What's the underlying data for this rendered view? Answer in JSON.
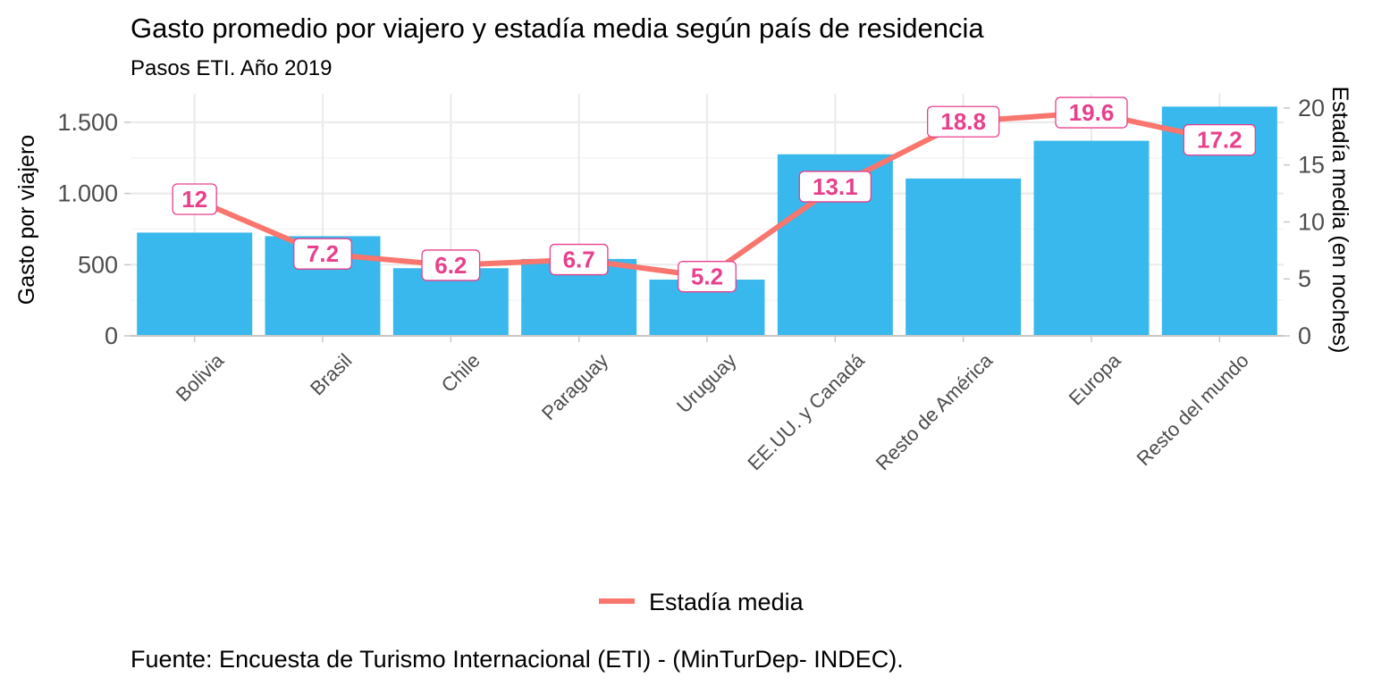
{
  "chart_data": {
    "type": "bar",
    "title": "Gasto promedio por viajero y estadía media según país de residencia",
    "subtitle": "Pasos ETI. Año 2019",
    "caption": "Fuente: Encuesta de Turismo Internacional (ETI) - (MinTurDep- INDEC).",
    "ylabel": "Gasto por viajero",
    "ylabel_right": "Estadía media (en noches)",
    "categories": [
      "Bolivia",
      "Brasil",
      "Chile",
      "Paraguay",
      "Uruguay",
      "EE.UU. y Canadá",
      "Resto de América",
      "Europa",
      "Resto del mundo"
    ],
    "series": [
      {
        "type": "bar",
        "axis": "left",
        "values": [
          725,
          700,
          475,
          540,
          395,
          1275,
          1105,
          1370,
          1610
        ]
      },
      {
        "type": "line",
        "axis": "right",
        "name": "Estadía media",
        "values": [
          12,
          7.2,
          6.2,
          6.7,
          5.2,
          13.1,
          18.8,
          19.6,
          17.2
        ],
        "labels": [
          "12",
          "7.2",
          "6.2",
          "6.7",
          "5.2",
          "13.1",
          "18.8",
          "19.6",
          "17.2"
        ]
      }
    ],
    "ylim": [
      0,
      1700
    ],
    "ylim_right": [
      0,
      21.25
    ],
    "yticks": [
      0,
      500,
      1000,
      1500
    ],
    "yticks_labels": [
      "0",
      "500",
      "1.000",
      "1.500"
    ],
    "yticks_right": [
      0,
      5,
      10,
      15,
      20
    ],
    "yticks_right_labels": [
      "0",
      "5",
      "10",
      "15",
      "20"
    ],
    "legend": {
      "position": "bottom",
      "entries": [
        "Estadía media"
      ]
    },
    "grid": true,
    "colors": {
      "bars": "#38B8EC",
      "line": "#F8766D",
      "label_text": "#E8408C",
      "label_border": "#E8408C"
    }
  }
}
